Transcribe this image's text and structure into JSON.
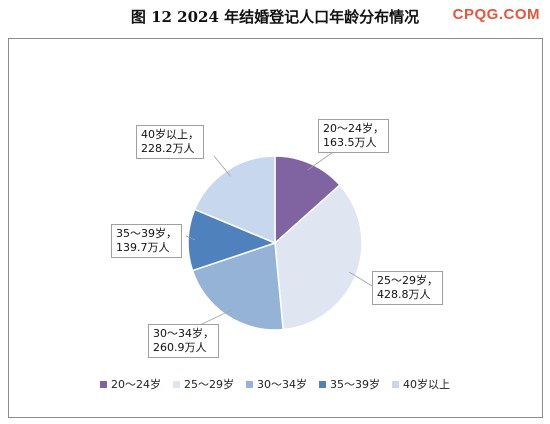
{
  "header": {
    "title": "图 12     2024 年结婚登记人口年龄分布情况",
    "brand": "CPQG.COM"
  },
  "chart_data": {
    "type": "pie",
    "title": "图 12     2024 年结婚登记人口年龄分布情况",
    "categories": [
      "20～24岁",
      "25～29岁",
      "30～34岁",
      "35～39岁",
      "40岁以上"
    ],
    "values": [
      163.5,
      428.8,
      260.9,
      139.7,
      228.2
    ],
    "unit": "万人",
    "labels": [
      "20～24岁，\n163.5万人",
      "25～29岁，\n428.8万人",
      "30～34岁，\n260.9万人",
      "35～39岁，\n139.7万人",
      "40岁以上，\n228.2万人"
    ],
    "colors": [
      "#8064a2",
      "#dfe5f1",
      "#95b3d7",
      "#4f81bd",
      "#c6d7ee"
    ],
    "legend_position": "bottom"
  }
}
